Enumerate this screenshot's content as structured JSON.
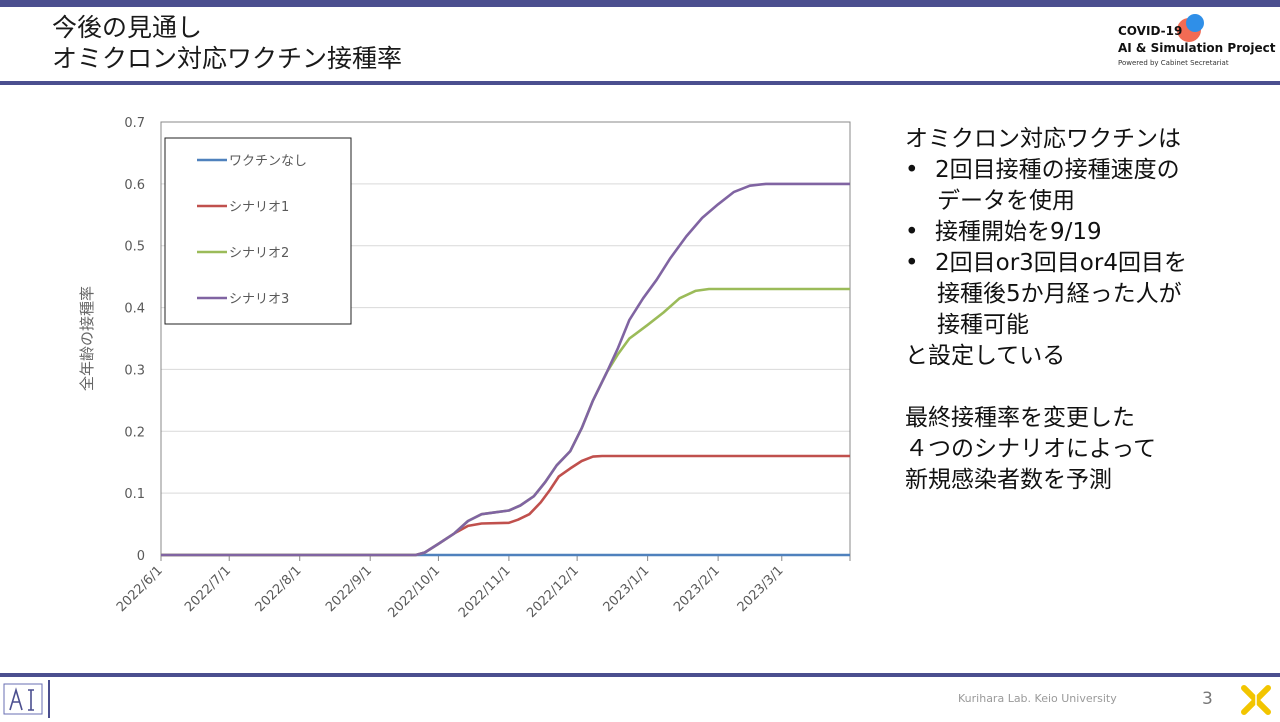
{
  "header": {
    "title_line1": "今後の見通し",
    "title_line2": "オミクロン対応ワクチン接種率",
    "logo": {
      "line1": "COVID-19",
      "line2": "AI & Simulation Project",
      "line3": "Powered by Cabinet Secretariat",
      "colors": {
        "dot_red": "#f26b54",
        "dot_blue": "#2f8fe8"
      }
    }
  },
  "side_text": {
    "intro": "オミクロン対応ワクチンは",
    "bullets": [
      {
        "line1": "2回目接種の接種速度の",
        "line2": "データを使用"
      },
      {
        "line1": "接種開始を9/19"
      },
      {
        "line1": "2回目or3回目or4回目を",
        "line2": "接種後5か月経った人が",
        "line3": "接種可能"
      }
    ],
    "setting": "と設定している",
    "para2_line1": "最終接種率を変更した",
    "para2_line2": "４つのシナリオによって",
    "para2_line3": "新規感染者数を予測"
  },
  "footer": {
    "credit": "Kurihara Lab. Keio University",
    "page_number": "3",
    "accent_color": "#4b4f8f"
  },
  "chart_data": {
    "type": "line",
    "title": "",
    "xlabel": "",
    "ylabel": "全年齢の接種率",
    "ylim": [
      0,
      0.7
    ],
    "yticks": [
      0,
      0.1,
      0.2,
      0.3,
      0.4,
      0.5,
      0.6,
      0.7
    ],
    "ytick_labels": [
      "0",
      "0.1",
      "0.2",
      "0.3",
      "0.4",
      "0.5",
      "0.6",
      "0.7"
    ],
    "xlim": [
      "2022-06-01",
      "2023-03-31"
    ],
    "xticks": [
      "2022-06-01",
      "2022-07-01",
      "2022-08-01",
      "2022-09-01",
      "2022-10-01",
      "2022-11-01",
      "2022-12-01",
      "2023-01-01",
      "2023-02-01",
      "2023-03-01"
    ],
    "xtick_labels": [
      "2022/6/1",
      "2022/7/1",
      "2022/8/1",
      "2022/9/1",
      "2022/10/1",
      "2022/11/1",
      "2022/12/1",
      "2023/1/1",
      "2023/2/1",
      "2023/3/1"
    ],
    "grid": "horizontal",
    "legend_position": "top-left",
    "series": [
      {
        "name": "ワクチンなし",
        "color": "#4f81bd",
        "points": [
          [
            "2022-06-01",
            0
          ],
          [
            "2023-03-31",
            0
          ]
        ]
      },
      {
        "name": "シナリオ1",
        "color": "#c0504d",
        "points": [
          [
            "2022-06-01",
            0
          ],
          [
            "2022-09-21",
            0
          ],
          [
            "2022-09-25",
            0.004
          ],
          [
            "2022-10-01",
            0.018
          ],
          [
            "2022-10-08",
            0.035
          ],
          [
            "2022-10-14",
            0.047
          ],
          [
            "2022-10-20",
            0.051
          ],
          [
            "2022-11-01",
            0.052
          ],
          [
            "2022-11-05",
            0.057
          ],
          [
            "2022-11-10",
            0.066
          ],
          [
            "2022-11-15",
            0.085
          ],
          [
            "2022-11-19",
            0.105
          ],
          [
            "2022-11-23",
            0.127
          ],
          [
            "2022-11-28",
            0.14
          ],
          [
            "2022-12-03",
            0.152
          ],
          [
            "2022-12-08",
            0.159
          ],
          [
            "2022-12-12",
            0.16
          ],
          [
            "2023-03-31",
            0.16
          ]
        ]
      },
      {
        "name": "シナリオ2",
        "color": "#9bbb59",
        "points": [
          [
            "2022-06-01",
            0
          ],
          [
            "2022-09-21",
            0
          ],
          [
            "2022-09-25",
            0.004
          ],
          [
            "2022-10-01",
            0.018
          ],
          [
            "2022-10-08",
            0.035
          ],
          [
            "2022-10-14",
            0.055
          ],
          [
            "2022-10-20",
            0.066
          ],
          [
            "2022-10-26",
            0.069
          ],
          [
            "2022-11-01",
            0.072
          ],
          [
            "2022-11-06",
            0.08
          ],
          [
            "2022-11-12",
            0.095
          ],
          [
            "2022-11-17",
            0.118
          ],
          [
            "2022-11-22",
            0.145
          ],
          [
            "2022-11-28",
            0.168
          ],
          [
            "2022-12-03",
            0.205
          ],
          [
            "2022-12-08",
            0.25
          ],
          [
            "2022-12-14",
            0.295
          ],
          [
            "2022-12-19",
            0.325
          ],
          [
            "2022-12-24",
            0.35
          ],
          [
            "2023-01-01",
            0.372
          ],
          [
            "2023-01-08",
            0.392
          ],
          [
            "2023-01-15",
            0.415
          ],
          [
            "2023-01-22",
            0.427
          ],
          [
            "2023-01-28",
            0.43
          ],
          [
            "2023-03-31",
            0.43
          ]
        ]
      },
      {
        "name": "シナリオ3",
        "color": "#8064a2",
        "points": [
          [
            "2022-06-01",
            0
          ],
          [
            "2022-09-21",
            0
          ],
          [
            "2022-09-25",
            0.004
          ],
          [
            "2022-10-01",
            0.018
          ],
          [
            "2022-10-08",
            0.035
          ],
          [
            "2022-10-14",
            0.055
          ],
          [
            "2022-10-20",
            0.066
          ],
          [
            "2022-10-26",
            0.069
          ],
          [
            "2022-11-01",
            0.072
          ],
          [
            "2022-11-06",
            0.08
          ],
          [
            "2022-11-12",
            0.095
          ],
          [
            "2022-11-17",
            0.118
          ],
          [
            "2022-11-22",
            0.145
          ],
          [
            "2022-11-28",
            0.168
          ],
          [
            "2022-12-03",
            0.205
          ],
          [
            "2022-12-08",
            0.25
          ],
          [
            "2022-12-14",
            0.295
          ],
          [
            "2022-12-19",
            0.335
          ],
          [
            "2022-12-24",
            0.38
          ],
          [
            "2022-12-30",
            0.415
          ],
          [
            "2023-01-05",
            0.445
          ],
          [
            "2023-01-11",
            0.48
          ],
          [
            "2023-01-18",
            0.515
          ],
          [
            "2023-01-25",
            0.545
          ],
          [
            "2023-02-01",
            0.567
          ],
          [
            "2023-02-08",
            0.587
          ],
          [
            "2023-02-15",
            0.597
          ],
          [
            "2023-02-22",
            0.6
          ],
          [
            "2023-03-31",
            0.6
          ]
        ]
      }
    ]
  }
}
